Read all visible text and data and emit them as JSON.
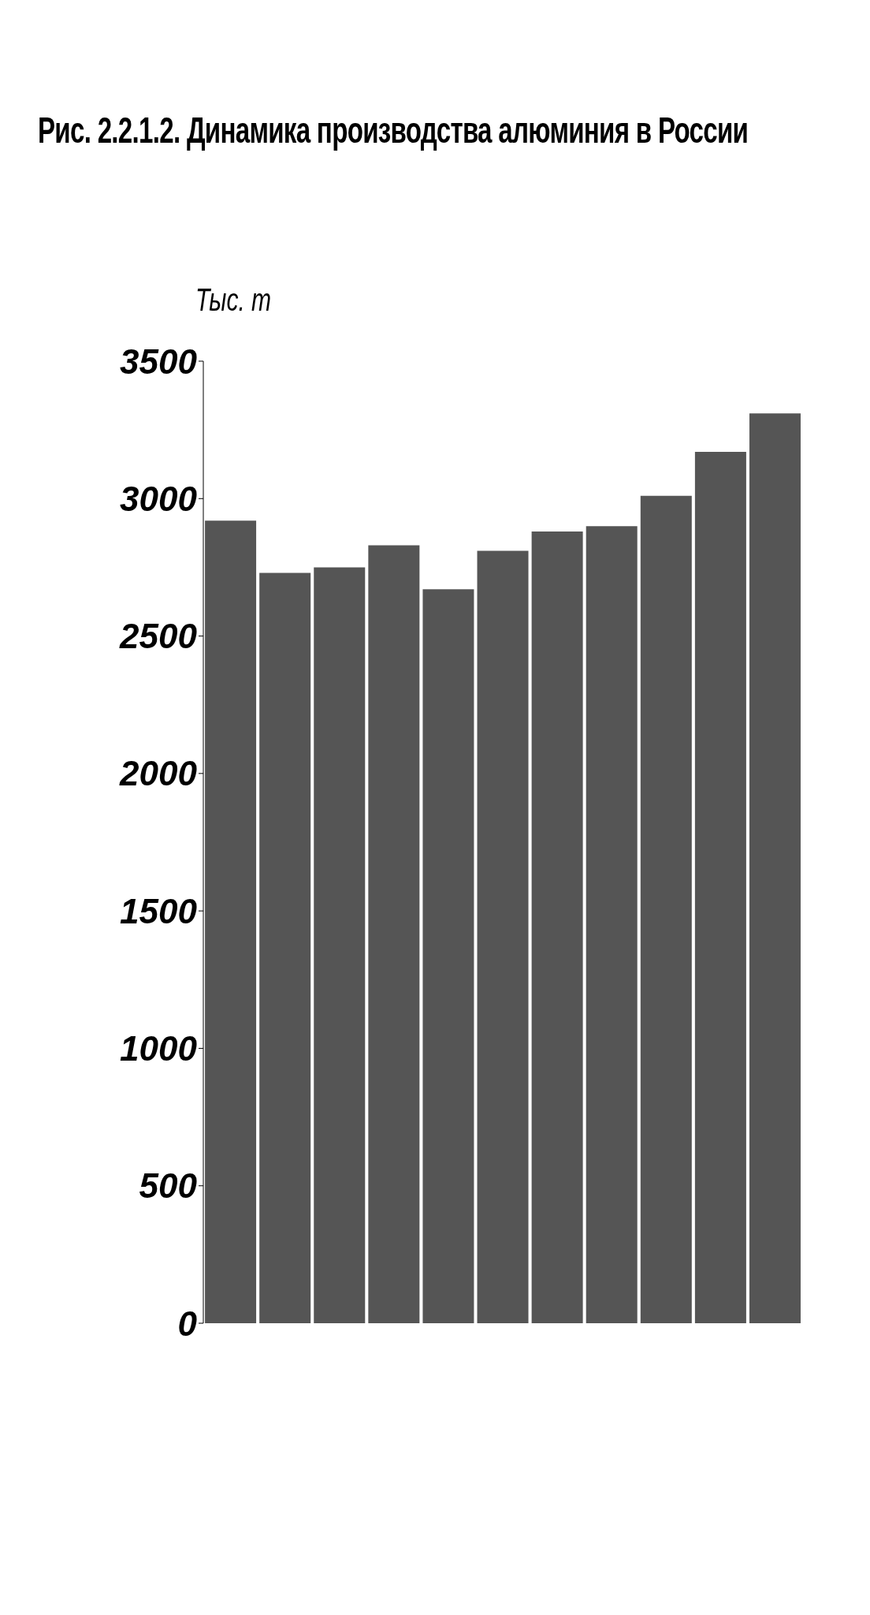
{
  "chart_data": {
    "type": "bar",
    "title": "Рис. 2.2.1.2. Динамика производства алюминия в России",
    "ylabel": "Тыс. т",
    "categories": [
      null,
      null,
      null,
      null,
      null,
      null,
      null,
      null,
      null,
      null,
      null
    ],
    "values": [
      2920,
      2730,
      2750,
      2830,
      2670,
      2810,
      2880,
      2900,
      3010,
      3170,
      3310
    ],
    "color": "#555555",
    "ylim": [
      0,
      3500
    ],
    "yticks": [
      0,
      500,
      1000,
      1500,
      2000,
      2500,
      3000,
      3500
    ],
    "grid": false,
    "legend": false
  }
}
